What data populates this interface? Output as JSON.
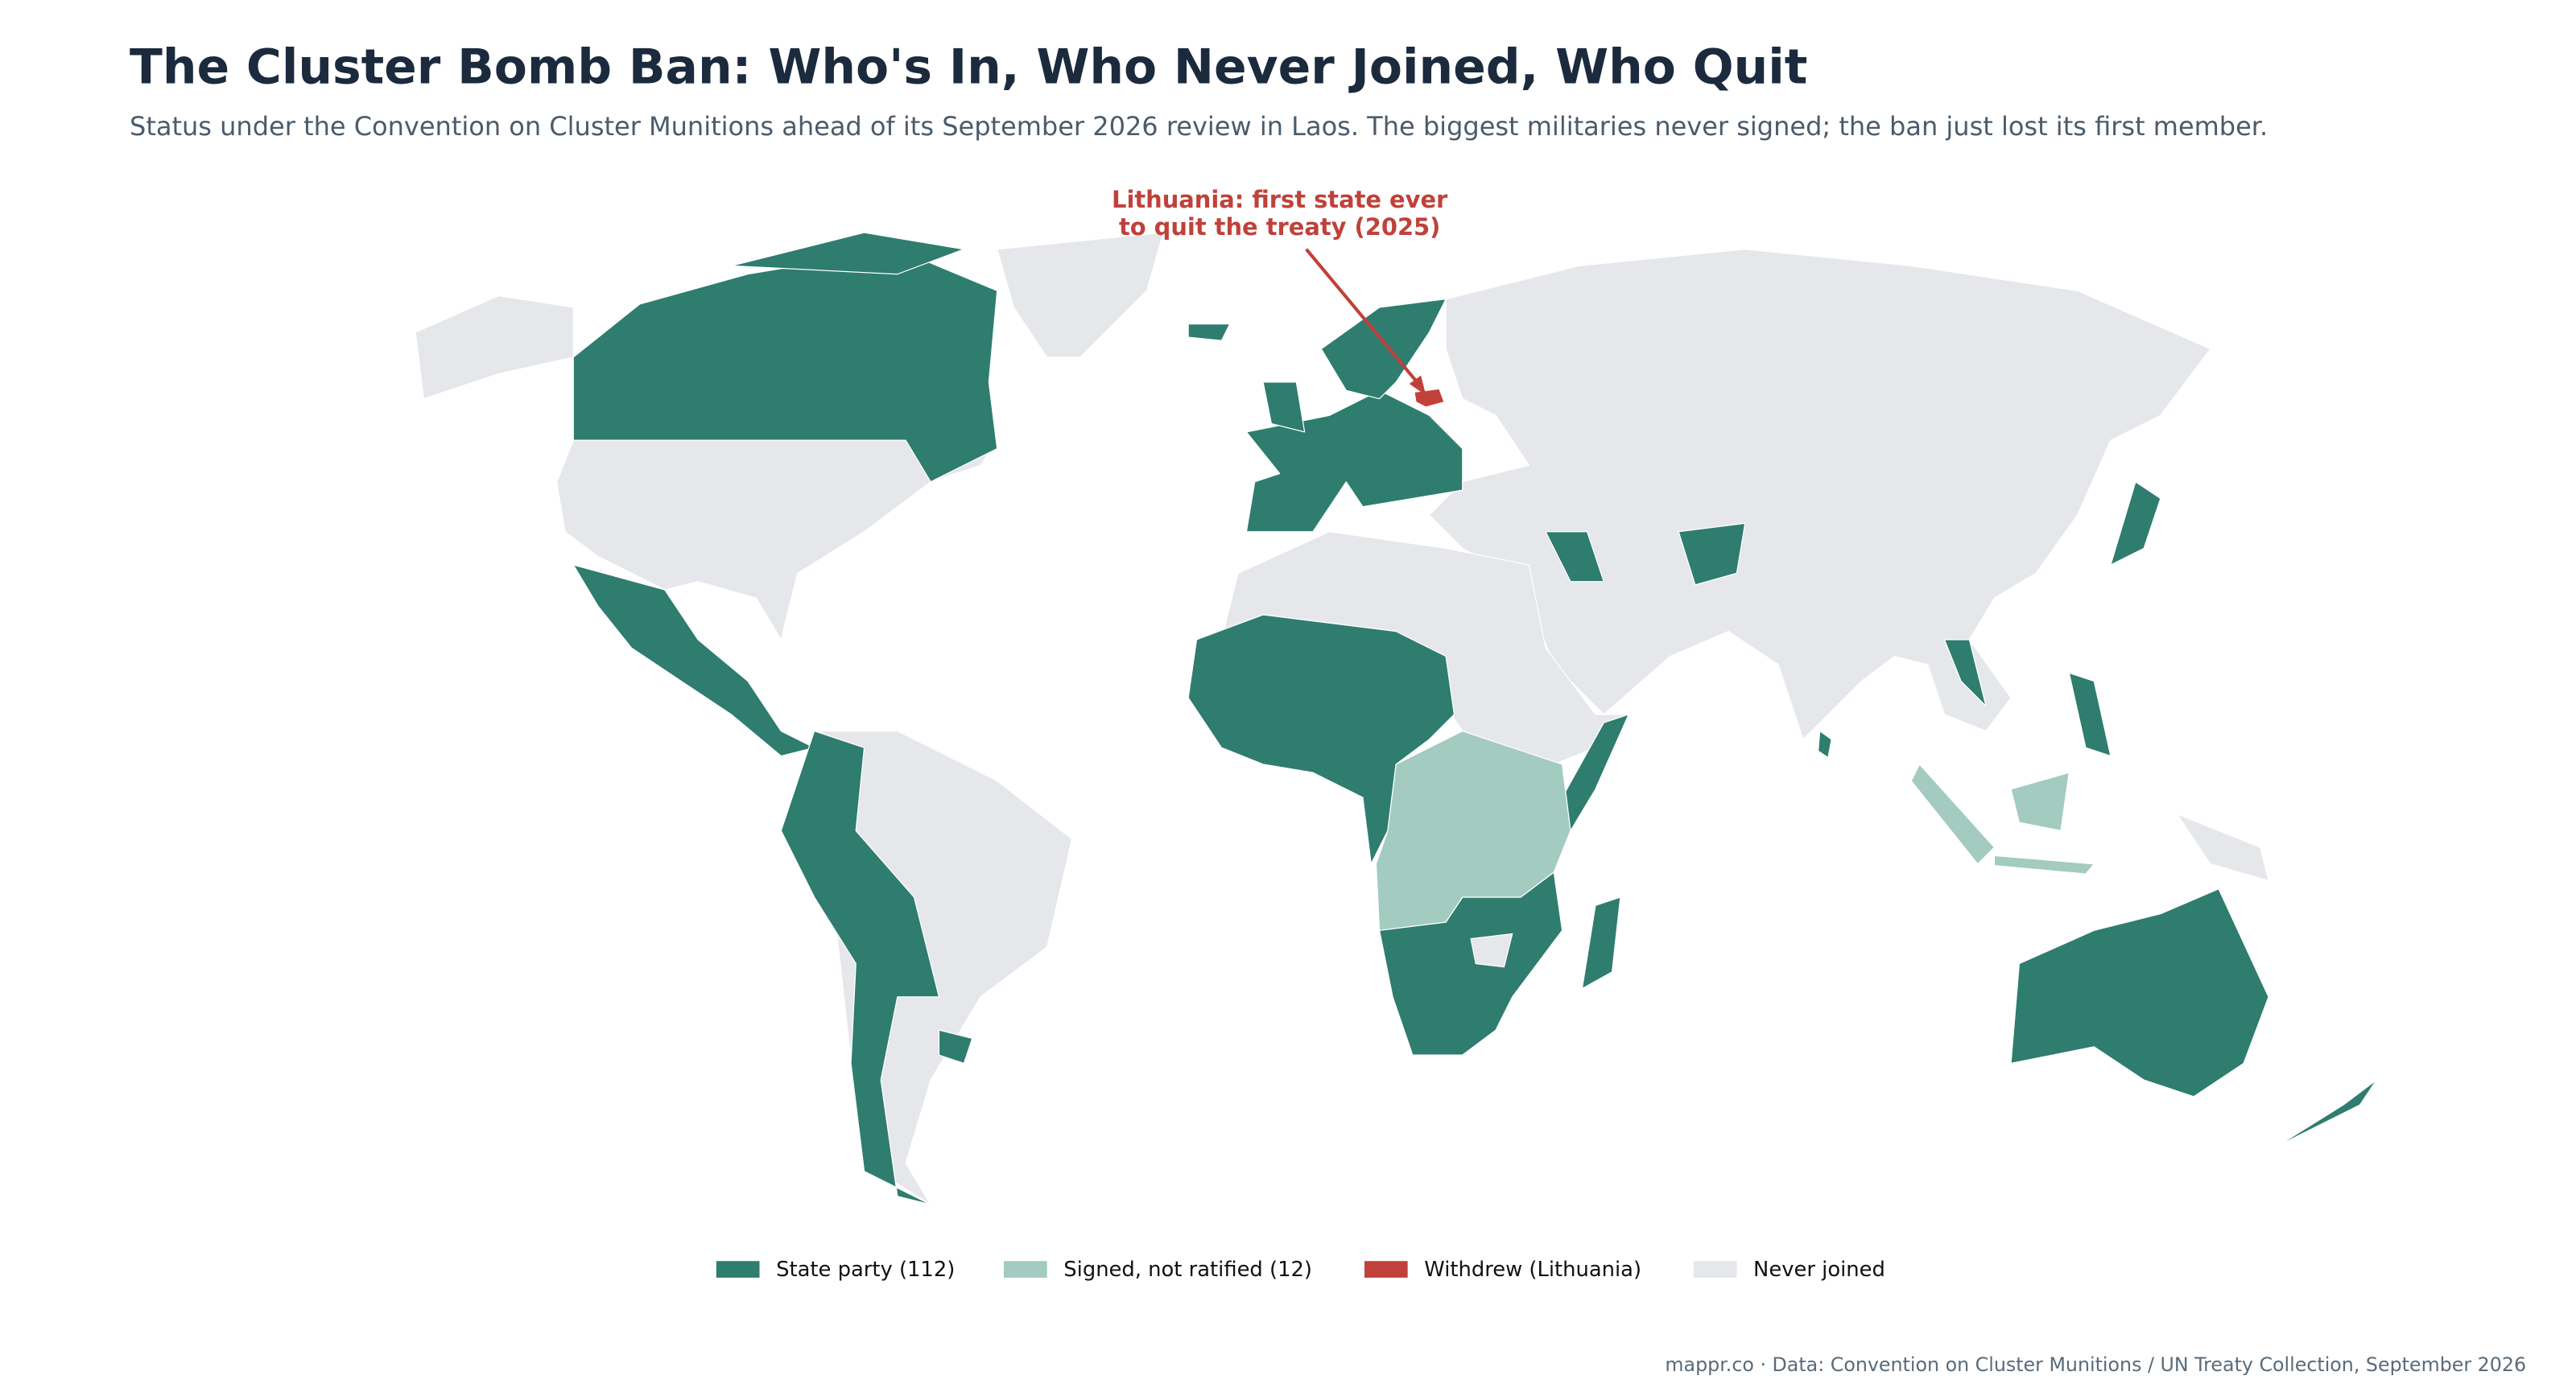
{
  "map": {
    "title": "The Cluster Bomb Ban: Who's In, Who Never Joined, Who Quit",
    "subtitle": "Status under the Convention on Cluster Munitions ahead of its September 2026 review in Laos. The biggest militaries never signed; the ban just lost its first member.",
    "annotation": [
      "Lithuania: first state ever",
      "to quit the treaty (2025)"
    ],
    "legend": [
      {
        "label": "State party (112)",
        "color": "#2e7d6f"
      },
      {
        "label": "Signed, not ratified (12)",
        "color": "#a3cbbf"
      },
      {
        "label": "Withdrew (Lithuania)",
        "color": "#c0413a"
      },
      {
        "label": "Never joined",
        "color": "#e5e7eb"
      }
    ],
    "source": "mappr.co · Data: Convention on Cluster Munitions / UN Treaty Collection, September 2026"
  }
}
